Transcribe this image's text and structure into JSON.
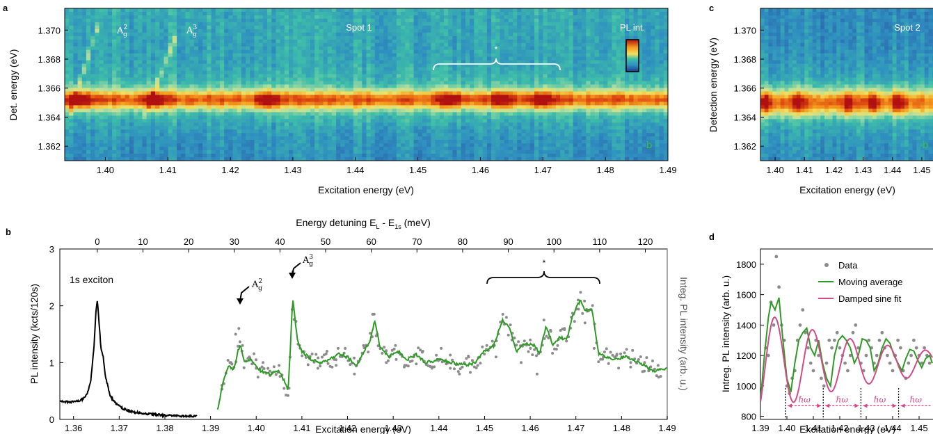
{
  "panels": {
    "a": {
      "letter": "a",
      "spot_label": "Spot 1",
      "colorbar_label": "PL int.",
      "peak_labels": [
        "A",
        "A"
      ],
      "peak_sup": [
        "2",
        "3"
      ],
      "peak_sub": [
        "g",
        "g"
      ],
      "star": "*",
      "corner_icon": "b"
    },
    "b": {
      "letter": "b",
      "exciton_label": "1s exciton",
      "peak_labels": [
        "A",
        "A"
      ],
      "peak_sup": [
        "2",
        "3"
      ],
      "peak_sub": [
        "g",
        "g"
      ],
      "star": "*"
    },
    "c": {
      "letter": "c",
      "spot_label": "Spot 2",
      "corner_icon": "b"
    },
    "d": {
      "letter": "d",
      "hbar_omega": "ℏω"
    }
  },
  "colors": {
    "data_points": "#8c8c8c",
    "moving_average": "#2e9a25",
    "damped_sine": "#d24a88",
    "exciton_line": "#000000",
    "colormap": [
      "#1d3a8a",
      "#2a5fa8",
      "#2f8fc0",
      "#3fbfa8",
      "#b8e0a0",
      "#f0e060",
      "#f5a020",
      "#e05010",
      "#b01010"
    ]
  },
  "chart_data": [
    {
      "panel": "a",
      "type": "heatmap",
      "title": "Spot 1",
      "xlabel": "Excitation energy (eV)",
      "ylabel": "Det. energy (eV)",
      "xlim": [
        1.3935,
        1.49
      ],
      "ylim": [
        1.361,
        1.3715
      ],
      "xticks": [
        1.4,
        1.41,
        1.42,
        1.43,
        1.44,
        1.45,
        1.46,
        1.47,
        1.48,
        1.49
      ],
      "xtick_labels": [
        "1.40",
        "1.41",
        "1.42",
        "1.43",
        "1.44",
        "1.45",
        "1.46",
        "1.47",
        "1.48",
        "1.49"
      ],
      "yticks": [
        1.362,
        1.364,
        1.366,
        1.368,
        1.37
      ],
      "ytick_labels": [
        "1.362",
        "1.364",
        "1.366",
        "1.368",
        "1.370"
      ],
      "band_center": 1.3652,
      "band_width": 0.0006,
      "bright_spots": [
        1.396,
        1.408,
        1.426,
        1.455,
        1.4635,
        1.47
      ],
      "diagonal_lines": [
        {
          "x": [
            1.394,
            1.399
          ],
          "y": [
            1.3638,
            1.3705
          ]
        },
        {
          "x": [
            1.406,
            1.4115
          ],
          "y": [
            1.3638,
            1.3698
          ]
        }
      ],
      "bracket_range": [
        1.453,
        1.473
      ],
      "annotations": [
        "A_g^2",
        "A_g^3",
        "*"
      ]
    },
    {
      "panel": "b",
      "type": "line",
      "xlabel": "Excitation energy (eV)",
      "ylabel": "PL intensity (kcts/120s)",
      "ylabel_right": "Integ. PL intensity (arb. u.)",
      "top_xlabel": "Energy detuning E",
      "top_xlabel_sub": [
        "L",
        "1s"
      ],
      "top_xlabel_rest": [
        " - E",
        " (meV)"
      ],
      "xlim": [
        1.357,
        1.49
      ],
      "ylim": [
        0,
        3
      ],
      "xticks": [
        1.36,
        1.37,
        1.38,
        1.39,
        1.4,
        1.41,
        1.42,
        1.43,
        1.44,
        1.45,
        1.46,
        1.47,
        1.48,
        1.49
      ],
      "xtick_labels": [
        "1.36",
        "1.37",
        "1.38",
        "1.39",
        "1.40",
        "1.41",
        "1.42",
        "1.43",
        "1.44",
        "1.45",
        "1.46",
        "1.47",
        "1.48",
        "1.49"
      ],
      "yticks": [
        0,
        1,
        2,
        3
      ],
      "ytick_labels": [
        "0",
        "1",
        "2",
        "3"
      ],
      "top_ticks_meV": [
        0,
        10,
        20,
        30,
        40,
        50,
        60,
        70,
        80,
        90,
        100,
        110,
        120
      ],
      "top_tick_labels": [
        "0",
        "10",
        "20",
        "30",
        "40",
        "50",
        "60",
        "70",
        "80",
        "90",
        "100",
        "110",
        "120"
      ],
      "e1s": 1.3652,
      "exciton_spectrum": {
        "x": [
          1.357,
          1.359,
          1.361,
          1.362,
          1.363,
          1.3638,
          1.3645,
          1.3649,
          1.3652,
          1.3656,
          1.366,
          1.3665,
          1.367,
          1.368,
          1.369,
          1.371,
          1.373,
          1.376,
          1.38,
          1.384,
          1.387
        ],
        "y": [
          0.33,
          0.3,
          0.32,
          0.36,
          0.45,
          0.7,
          1.3,
          1.9,
          2.1,
          1.7,
          1.25,
          1.1,
          0.75,
          0.42,
          0.3,
          0.18,
          0.13,
          0.1,
          0.07,
          0.06,
          0.06
        ]
      },
      "moving_average": {
        "x": [
          1.3915,
          1.393,
          1.394,
          1.395,
          1.396,
          1.3965,
          1.3975,
          1.399,
          1.4,
          1.401,
          1.403,
          1.405,
          1.406,
          1.407,
          1.4075,
          1.408,
          1.409,
          1.41,
          1.412,
          1.414,
          1.416,
          1.418,
          1.42,
          1.422,
          1.424,
          1.425,
          1.426,
          1.427,
          1.429,
          1.431,
          1.433,
          1.435,
          1.437,
          1.44,
          1.443,
          1.446,
          1.448,
          1.45,
          1.452,
          1.454,
          1.4555,
          1.457,
          1.459,
          1.461,
          1.462,
          1.4635,
          1.465,
          1.4665,
          1.468,
          1.469,
          1.47,
          1.471,
          1.472,
          1.4735,
          1.475,
          1.478,
          1.481,
          1.484,
          1.487,
          1.49
        ],
        "y": [
          0.15,
          0.75,
          0.95,
          0.85,
          1.2,
          1.33,
          1.0,
          1.05,
          0.95,
          0.85,
          0.8,
          0.85,
          0.7,
          0.5,
          1.3,
          2.15,
          1.4,
          1.2,
          1.05,
          1.0,
          1.05,
          1.15,
          1.1,
          0.95,
          1.25,
          1.4,
          1.75,
          1.3,
          1.1,
          1.2,
          1.05,
          1.15,
          1.0,
          1.05,
          1.0,
          0.95,
          1.0,
          1.2,
          1.3,
          1.75,
          1.6,
          1.2,
          1.35,
          1.3,
          1.15,
          1.65,
          1.3,
          1.45,
          1.4,
          1.75,
          1.95,
          2.1,
          1.9,
          1.95,
          1.15,
          1.05,
          1.1,
          1.0,
          0.85,
          0.9
        ]
      },
      "scatter": {
        "x": [
          1.3925,
          1.3945,
          1.3955,
          1.3962,
          1.397,
          1.3985,
          1.4,
          1.4015,
          1.403,
          1.405,
          1.4072,
          1.408,
          1.4095,
          1.4115,
          1.4135,
          1.4155,
          1.4175,
          1.4195,
          1.4215,
          1.4235,
          1.4255,
          1.4265,
          1.4285,
          1.4305,
          1.4325,
          1.4345,
          1.4365,
          1.4385,
          1.4405,
          1.4425,
          1.4445,
          1.4465,
          1.4485,
          1.4505,
          1.4525,
          1.454,
          1.456,
          1.458,
          1.46,
          1.4615,
          1.463,
          1.4645,
          1.466,
          1.4675,
          1.469,
          1.4705,
          1.472,
          1.474,
          1.476,
          1.479,
          1.482,
          1.485,
          1.488
        ],
        "y": [
          0.6,
          1.0,
          1.5,
          1.6,
          1.3,
          1.1,
          0.9,
          1.0,
          0.85,
          0.95,
          0.55,
          2.6,
          1.3,
          1.1,
          0.9,
          1.2,
          1.05,
          1.25,
          0.8,
          1.3,
          1.85,
          1.5,
          1.0,
          1.3,
          0.95,
          1.1,
          1.2,
          0.9,
          1.25,
          0.9,
          0.8,
          1.1,
          0.95,
          1.3,
          1.1,
          1.85,
          1.4,
          1.0,
          1.4,
          0.8,
          1.75,
          1.55,
          1.3,
          1.6,
          1.8,
          2.1,
          1.7,
          1.25,
          1.1,
          1.15,
          1.0,
          0.85,
          0.95
        ]
      },
      "bracket_range": [
        1.4505,
        1.4755
      ],
      "annotations": [
        "1s exciton",
        "A_g^2",
        "A_g^3",
        "*"
      ]
    },
    {
      "panel": "c",
      "type": "heatmap",
      "title": "Spot 2",
      "xlabel": "Excitation energy (eV)",
      "ylabel": "Detection energy (eV)",
      "xlim": [
        1.395,
        1.455
      ],
      "ylim": [
        1.361,
        1.3715
      ],
      "xticks": [
        1.4,
        1.41,
        1.42,
        1.43,
        1.44,
        1.45
      ],
      "xtick_labels": [
        "1.40",
        "1.41",
        "1.42",
        "1.43",
        "1.44",
        "1.45"
      ],
      "yticks": [
        1.362,
        1.364,
        1.366,
        1.368,
        1.37
      ],
      "ytick_labels": [
        "1.362",
        "1.364",
        "1.366",
        "1.368",
        "1.370"
      ],
      "band_center": 1.365,
      "band_width": 0.0008,
      "bright_spots": [
        1.397,
        1.408,
        1.425,
        1.433,
        1.442
      ]
    },
    {
      "panel": "d",
      "type": "line",
      "xlabel": "Excitation energy (eV)",
      "ylabel": "Intreg. PL intensity (arb. u.)",
      "xlim": [
        1.39,
        1.455
      ],
      "ylim": [
        780,
        1900
      ],
      "xticks": [
        1.39,
        1.4,
        1.41,
        1.42,
        1.43,
        1.44,
        1.45
      ],
      "xtick_labels": [
        "1.39",
        "1.40",
        "1.41",
        "1.42",
        "1.43",
        "1.44",
        "1.45"
      ],
      "yticks": [
        800,
        1000,
        1200,
        1400,
        1600,
        1800
      ],
      "ytick_labels": [
        "800",
        "1000",
        "1200",
        "1400",
        "1600",
        "1800"
      ],
      "legend": [
        "Data",
        "Moving average",
        "Damped sine fit"
      ],
      "legend_position": "top-right",
      "series": [
        {
          "name": "Data",
          "type": "scatter",
          "x": [
            1.3905,
            1.392,
            1.393,
            1.394,
            1.395,
            1.396,
            1.397,
            1.398,
            1.399,
            1.4,
            1.401,
            1.402,
            1.403,
            1.404,
            1.405,
            1.406,
            1.407,
            1.408,
            1.409,
            1.41,
            1.411,
            1.412,
            1.413,
            1.414,
            1.415,
            1.416,
            1.417,
            1.418,
            1.419,
            1.42,
            1.421,
            1.422,
            1.423,
            1.424,
            1.425,
            1.426,
            1.427,
            1.428,
            1.429,
            1.43,
            1.431,
            1.432,
            1.433,
            1.434,
            1.435,
            1.436,
            1.437,
            1.438,
            1.439,
            1.44,
            1.441,
            1.442,
            1.443,
            1.444,
            1.445,
            1.446,
            1.447,
            1.448,
            1.449,
            1.45,
            1.451,
            1.452,
            1.453,
            1.454
          ],
          "y": [
            1000,
            1250,
            1200,
            1550,
            1400,
            1850,
            1650,
            1400,
            1300,
            1000,
            950,
            1050,
            1100,
            1300,
            1400,
            1500,
            1350,
            1250,
            1150,
            1100,
            1300,
            1200,
            1050,
            1000,
            1150,
            1300,
            1250,
            1300,
            1350,
            1250,
            1200,
            1150,
            1100,
            1200,
            1350,
            1400,
            1250,
            1150,
            1100,
            1200,
            1300,
            1250,
            1150,
            1200,
            1300,
            1350,
            1250,
            1200,
            1150,
            1100,
            1200,
            1300,
            1250,
            1100,
            1050,
            1150,
            1200,
            1300,
            1250,
            1200,
            1150,
            1250,
            1200,
            1150
          ]
        },
        {
          "name": "Moving average",
          "type": "line",
          "x": [
            1.39,
            1.3915,
            1.393,
            1.394,
            1.3955,
            1.397,
            1.3985,
            1.4,
            1.4015,
            1.403,
            1.4045,
            1.406,
            1.4075,
            1.409,
            1.4105,
            1.412,
            1.4135,
            1.415,
            1.4165,
            1.418,
            1.4195,
            1.421,
            1.4225,
            1.424,
            1.4255,
            1.427,
            1.4285,
            1.43,
            1.4315,
            1.433,
            1.4345,
            1.436,
            1.4375,
            1.439,
            1.4405,
            1.442,
            1.4435,
            1.445,
            1.4465,
            1.448,
            1.4495,
            1.451,
            1.4525,
            1.454,
            1.455
          ],
          "y": [
            900,
            1200,
            1450,
            1550,
            1500,
            1580,
            1300,
            1050,
            960,
            1150,
            1300,
            1350,
            1380,
            1250,
            1200,
            1300,
            1150,
            1050,
            1000,
            1200,
            1300,
            1330,
            1300,
            1250,
            1150,
            1200,
            1310,
            1300,
            1250,
            1100,
            1150,
            1250,
            1310,
            1280,
            1200,
            1150,
            1100,
            1180,
            1240,
            1230,
            1170,
            1120,
            1180,
            1200,
            1150
          ]
        },
        {
          "name": "Damped sine fit",
          "type": "line",
          "amplitude": 340,
          "offset": 1150,
          "period": 0.01425,
          "phase_peak": 1.3955,
          "decay": 0.045,
          "x_range": [
            1.39,
            1.455
          ]
        }
      ],
      "period_markers": [
        1.3995,
        1.41375,
        1.428,
        1.44225,
        1.4565
      ],
      "period_label": "ℏω"
    }
  ]
}
